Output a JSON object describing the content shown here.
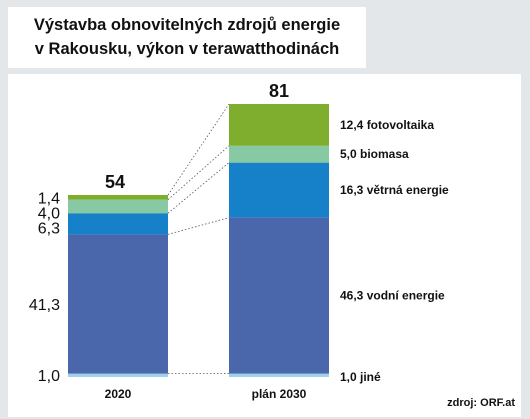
{
  "title": {
    "line1": "Výstavba obnovitelných zdrojů energie",
    "line2": "v Rakousku, výkon v terawatthodinách"
  },
  "source": "zdroj: ORF.at",
  "colors": {
    "jine": "#9fd0ec",
    "vodni": "#4b67ac",
    "vetrna": "#1680c8",
    "biomasa": "#86c9a2",
    "fotovoltaika": "#7fae2e"
  },
  "chart_data": {
    "type": "bar",
    "stacked": true,
    "title": "Výstavba obnovitelných zdrojů energie v Rakousku, výkon v terawatthodinách",
    "categories": [
      "2020",
      "plán 2030"
    ],
    "totals": [
      "54",
      "81"
    ],
    "series": [
      {
        "key": "jine",
        "values": [
          1.0,
          1.0
        ],
        "labels": [
          "1,0",
          "1,0 jiné"
        ]
      },
      {
        "key": "vodni",
        "values": [
          41.3,
          46.3
        ],
        "labels": [
          "41,3",
          "46,3 vodní energie"
        ]
      },
      {
        "key": "vetrna",
        "values": [
          6.3,
          16.3
        ],
        "labels": [
          "6,3",
          "16,3 větrná energie"
        ]
      },
      {
        "key": "biomasa",
        "values": [
          4.0,
          5.0
        ],
        "labels": [
          "4,0",
          "5,0 biomasa"
        ]
      },
      {
        "key": "fotovoltaika",
        "values": [
          1.4,
          12.4
        ],
        "labels": [
          "1,4",
          "12,4 fotovoltaika"
        ]
      }
    ],
    "ylim": [
      0,
      81
    ],
    "grid": false,
    "legend": "right"
  }
}
